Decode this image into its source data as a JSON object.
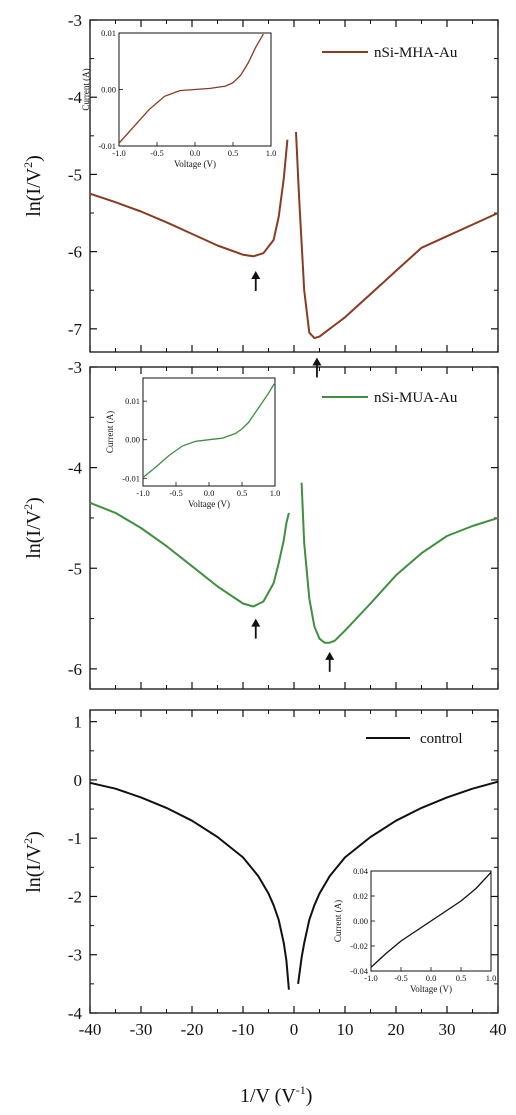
{
  "figure": {
    "xlabel": "1/V (V",
    "xlabel_sup": "-1",
    "xlabel_tail": ")",
    "ylabel": "ln(I/V",
    "ylabel_sup": "2",
    "ylabel_tail": ")",
    "line_colors": {
      "nSi-MHA-Au": "#8b3a22",
      "nSi-MUA-Au": "#3f8f3f",
      "control": "#111111"
    }
  },
  "chart_data": [
    {
      "type": "line",
      "panel": "top",
      "xlim": [
        -40,
        40
      ],
      "ylim": [
        -7.3,
        -3
      ],
      "yticks": [
        -3,
        -4,
        -5,
        -6,
        -7
      ],
      "ytick_labels": [
        "-3",
        "-4",
        "-5",
        "-6",
        "-7"
      ],
      "ylabel": "ln(I/V2)",
      "legend": "top-right",
      "series": [
        {
          "name": "nSi-MHA-Au",
          "color": "#8b3a22",
          "segments": [
            {
              "x": [
                -40,
                -35,
                -30,
                -25,
                -20,
                -15,
                -10,
                -8,
                -6,
                -4,
                -3,
                -2,
                -1.3
              ],
              "y": [
                -5.25,
                -5.36,
                -5.48,
                -5.62,
                -5.77,
                -5.92,
                -6.04,
                -6.06,
                -6.02,
                -5.85,
                -5.55,
                -5.05,
                -4.55
              ]
            },
            {
              "x": [
                0.4,
                1,
                2,
                3,
                4,
                5,
                6,
                8,
                10,
                15,
                20,
                25,
                30,
                35,
                40
              ],
              "y": [
                -4.45,
                -5.3,
                -6.5,
                -7.05,
                -7.12,
                -7.1,
                -7.05,
                -6.95,
                -6.85,
                -6.55,
                -6.25,
                -5.95,
                -5.8,
                -5.65,
                -5.5
              ]
            }
          ]
        }
      ],
      "arrows": [
        {
          "x": -7.5,
          "y": -6.38
        },
        {
          "x": 4.5,
          "y": -7.5
        }
      ],
      "inset": {
        "xlim": [
          -1.0,
          1.0
        ],
        "ylim": [
          -0.01,
          0.01
        ],
        "xticks": [
          "-1.0",
          "-0.5",
          "0.0",
          "0.5",
          "1.0"
        ],
        "yticks": [
          "0.01",
          "0.00",
          "-0.01"
        ],
        "xlabel": "Voltage (V)",
        "ylabel": "Current (A)",
        "x": [
          -1.0,
          -0.8,
          -0.6,
          -0.4,
          -0.2,
          0.0,
          0.2,
          0.4,
          0.5,
          0.6,
          0.7,
          0.8,
          0.9
        ],
        "y": [
          -0.0095,
          -0.0065,
          -0.0035,
          -0.0012,
          -0.0002,
          0.0,
          0.0002,
          0.0006,
          0.0012,
          0.0025,
          0.0047,
          0.0075,
          0.0098
        ]
      }
    },
    {
      "type": "line",
      "panel": "middle",
      "xlim": [
        -40,
        40
      ],
      "ylim": [
        -6.2,
        -3
      ],
      "yticks": [
        -3,
        -4,
        -5,
        -6
      ],
      "ytick_labels": [
        "-3",
        "-4",
        "-5",
        "-6"
      ],
      "ylabel": "ln(I/V2)",
      "legend": "top-right",
      "series": [
        {
          "name": "nSi-MUA-Au",
          "color": "#3f8f3f",
          "segments": [
            {
              "x": [
                -40,
                -35,
                -30,
                -25,
                -20,
                -15,
                -10,
                -8,
                -6,
                -4,
                -3,
                -2,
                -1.5,
                -1
              ],
              "y": [
                -4.35,
                -4.45,
                -4.6,
                -4.78,
                -4.98,
                -5.18,
                -5.35,
                -5.38,
                -5.33,
                -5.15,
                -4.95,
                -4.72,
                -4.55,
                -4.45
              ]
            },
            {
              "x": [
                1.5,
                2,
                3,
                4,
                5,
                6,
                7,
                8,
                10,
                15,
                20,
                25,
                30,
                35,
                40
              ],
              "y": [
                -4.15,
                -4.75,
                -5.3,
                -5.58,
                -5.7,
                -5.74,
                -5.74,
                -5.72,
                -5.62,
                -5.35,
                -5.07,
                -4.85,
                -4.68,
                -4.58,
                -4.5
              ]
            }
          ]
        }
      ],
      "arrows": [
        {
          "x": -7.5,
          "y": -5.6
        },
        {
          "x": 7,
          "y": -5.93
        }
      ],
      "inset": {
        "xlim": [
          -1.0,
          1.0
        ],
        "ylim": [
          -0.012,
          0.016
        ],
        "xticks": [
          "-1.0",
          "-0.5",
          "0.0",
          "0.5",
          "1.0"
        ],
        "yticks": [
          "0.01",
          "0.00",
          "-0.01"
        ],
        "xlabel": "Voltage (V)",
        "ylabel": "Current (A)",
        "x": [
          -1.0,
          -0.8,
          -0.6,
          -0.4,
          -0.2,
          0.0,
          0.2,
          0.4,
          0.5,
          0.6,
          0.7,
          0.8,
          0.9,
          1.0
        ],
        "y": [
          -0.0098,
          -0.007,
          -0.004,
          -0.0016,
          -0.0004,
          0.0,
          0.0004,
          0.0016,
          0.0028,
          0.0045,
          0.007,
          0.0095,
          0.012,
          0.0148
        ]
      }
    },
    {
      "type": "line",
      "panel": "bottom",
      "xlim": [
        -40,
        40
      ],
      "ylim": [
        -4,
        1.2
      ],
      "yticks": [
        1,
        0,
        -1,
        -2,
        -3,
        -4
      ],
      "ytick_labels": [
        "1",
        "0",
        "-1",
        "-2",
        "-3",
        "-4"
      ],
      "xticks": [
        -40,
        -30,
        -20,
        -10,
        0,
        10,
        20,
        30,
        40
      ],
      "xtick_labels": [
        "-40",
        "-30",
        "-20",
        "-10",
        "0",
        "10",
        "20",
        "30",
        "40"
      ],
      "xlabel": "1/V (V-1)",
      "ylabel": "ln(I/V2)",
      "legend": "top-right",
      "series": [
        {
          "name": "control",
          "color": "#111111",
          "segments": [
            {
              "x": [
                -40,
                -35,
                -30,
                -25,
                -20,
                -15,
                -10,
                -7,
                -5,
                -4,
                -3,
                -2,
                -1.5,
                -1
              ],
              "y": [
                -0.05,
                -0.15,
                -0.3,
                -0.48,
                -0.7,
                -0.98,
                -1.33,
                -1.65,
                -1.95,
                -2.15,
                -2.4,
                -2.8,
                -3.1,
                -3.6
              ]
            },
            {
              "x": [
                0.8,
                1.5,
                2,
                3,
                4,
                5,
                7,
                10,
                15,
                20,
                25,
                30,
                35,
                40
              ],
              "y": [
                -3.5,
                -3.05,
                -2.8,
                -2.4,
                -2.15,
                -1.95,
                -1.65,
                -1.33,
                -0.98,
                -0.7,
                -0.48,
                -0.3,
                -0.15,
                -0.03
              ]
            }
          ]
        }
      ],
      "inset": {
        "xlim": [
          -1.0,
          1.0
        ],
        "ylim": [
          -0.04,
          0.04
        ],
        "xticks": [
          "-1.0",
          "-0.5",
          "0.0",
          "0.5",
          "1.0"
        ],
        "yticks": [
          "0.04",
          "0.02",
          "0.00",
          "-0.02",
          "-0.04"
        ],
        "xlabel": "Voltage (V)",
        "ylabel": "Current (A)",
        "x": [
          -1.0,
          -0.75,
          -0.5,
          -0.25,
          0.0,
          0.25,
          0.5,
          0.75,
          1.0
        ],
        "y": [
          -0.037,
          -0.026,
          -0.016,
          -0.008,
          0.0,
          0.008,
          0.016,
          0.026,
          0.039
        ]
      }
    }
  ]
}
